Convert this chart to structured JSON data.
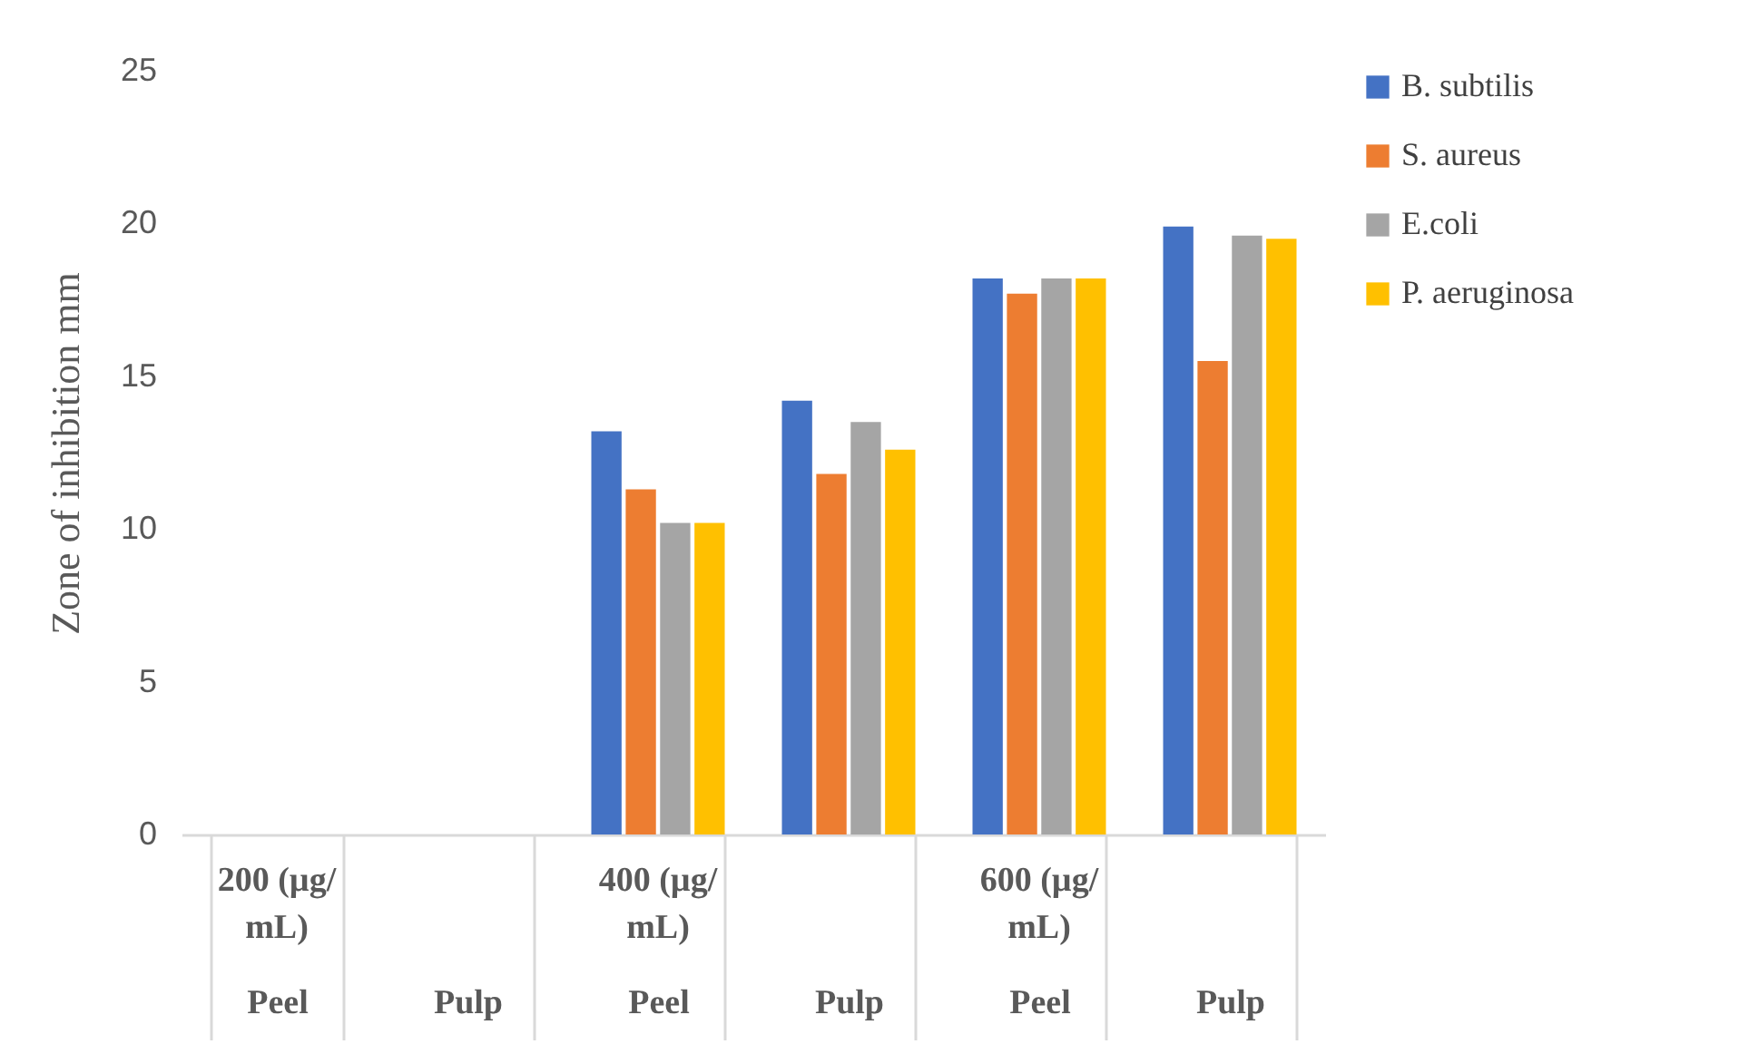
{
  "chart_data": {
    "type": "bar",
    "ylabel": "Zone of inhibition mm",
    "categories": [
      "Peel",
      "Pulp",
      "Peel",
      "Pulp",
      "Peel",
      "Pulp"
    ],
    "series": [
      {
        "name": "B. subtilis",
        "color": "#4472c4",
        "values": [
          0,
          0,
          13.2,
          14.2,
          18.2,
          19.9
        ]
      },
      {
        "name": "S. aureus",
        "color": "#ed7d31",
        "values": [
          0,
          0,
          11.3,
          11.8,
          17.7,
          15.5
        ]
      },
      {
        "name": "E.coli",
        "color": "#a5a5a5",
        "values": [
          0,
          0,
          10.2,
          13.5,
          18.2,
          19.6
        ]
      },
      {
        "name": "P. aeruginosa",
        "color": "#ffc000",
        "values": [
          0,
          0,
          10.2,
          12.6,
          18.2,
          19.5
        ]
      }
    ],
    "annotations": [
      "200 (µg/mL)",
      "400 (µg/mL)",
      "600 (µg/mL)"
    ],
    "ylim": [
      0,
      25
    ],
    "yticks": [
      0,
      5,
      10,
      15,
      20,
      25
    ],
    "grid": false,
    "legend": "right"
  }
}
